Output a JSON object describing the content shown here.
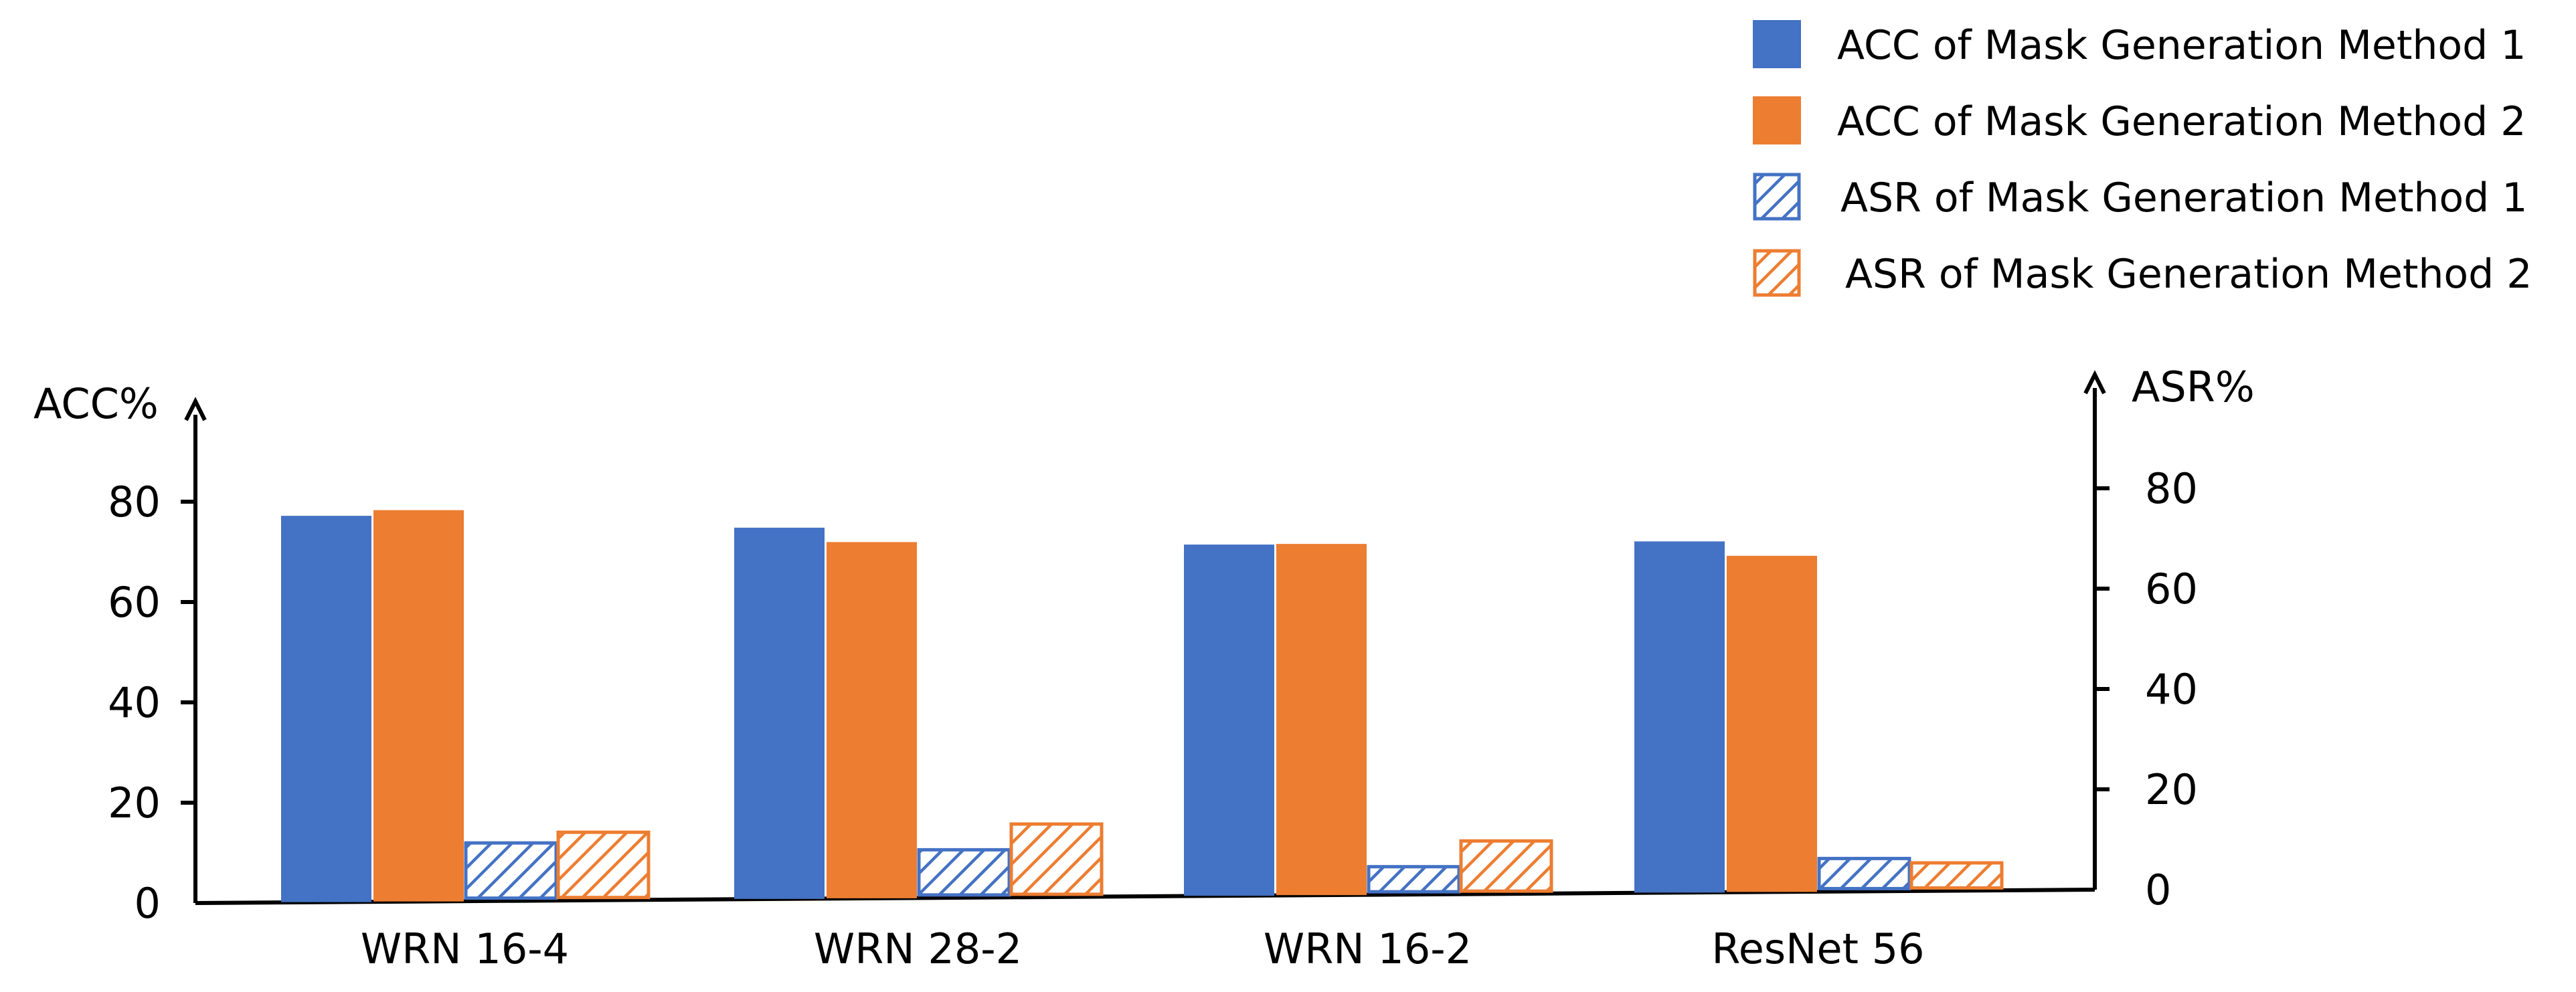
{
  "chart_data": {
    "type": "bar",
    "categories": [
      "WRN 16-4",
      "WRN 28-2",
      "WRN 16-2",
      "ResNet 56"
    ],
    "left_axis": {
      "label": "ACC%",
      "ticks": [
        0,
        20,
        40,
        60,
        80
      ],
      "ylim": [
        0,
        100
      ]
    },
    "right_axis": {
      "label": "ASR%",
      "ticks": [
        0,
        20,
        40,
        60,
        80
      ],
      "ylim": [
        0,
        100
      ]
    },
    "series": [
      {
        "name": "ACC of Mask Generation Method 1",
        "axis": "left",
        "style": "solid",
        "color": "#4472C4",
        "values": [
          77,
          74,
          70,
          70
        ]
      },
      {
        "name": "ACC of Mask Generation Method 2",
        "axis": "left",
        "style": "solid",
        "color": "#ED7D31",
        "values": [
          78,
          71,
          70,
          67
        ]
      },
      {
        "name": "ASR of Mask Generation Method 1",
        "axis": "right",
        "style": "hatched",
        "color": "#4472C4",
        "values": [
          11,
          9,
          5,
          6
        ]
      },
      {
        "name": "ASR of Mask Generation Method 2",
        "axis": "right",
        "style": "hatched",
        "color": "#ED7D31",
        "values": [
          13,
          14,
          10,
          5
        ]
      }
    ],
    "legend_position": "top-right",
    "grid": false
  }
}
